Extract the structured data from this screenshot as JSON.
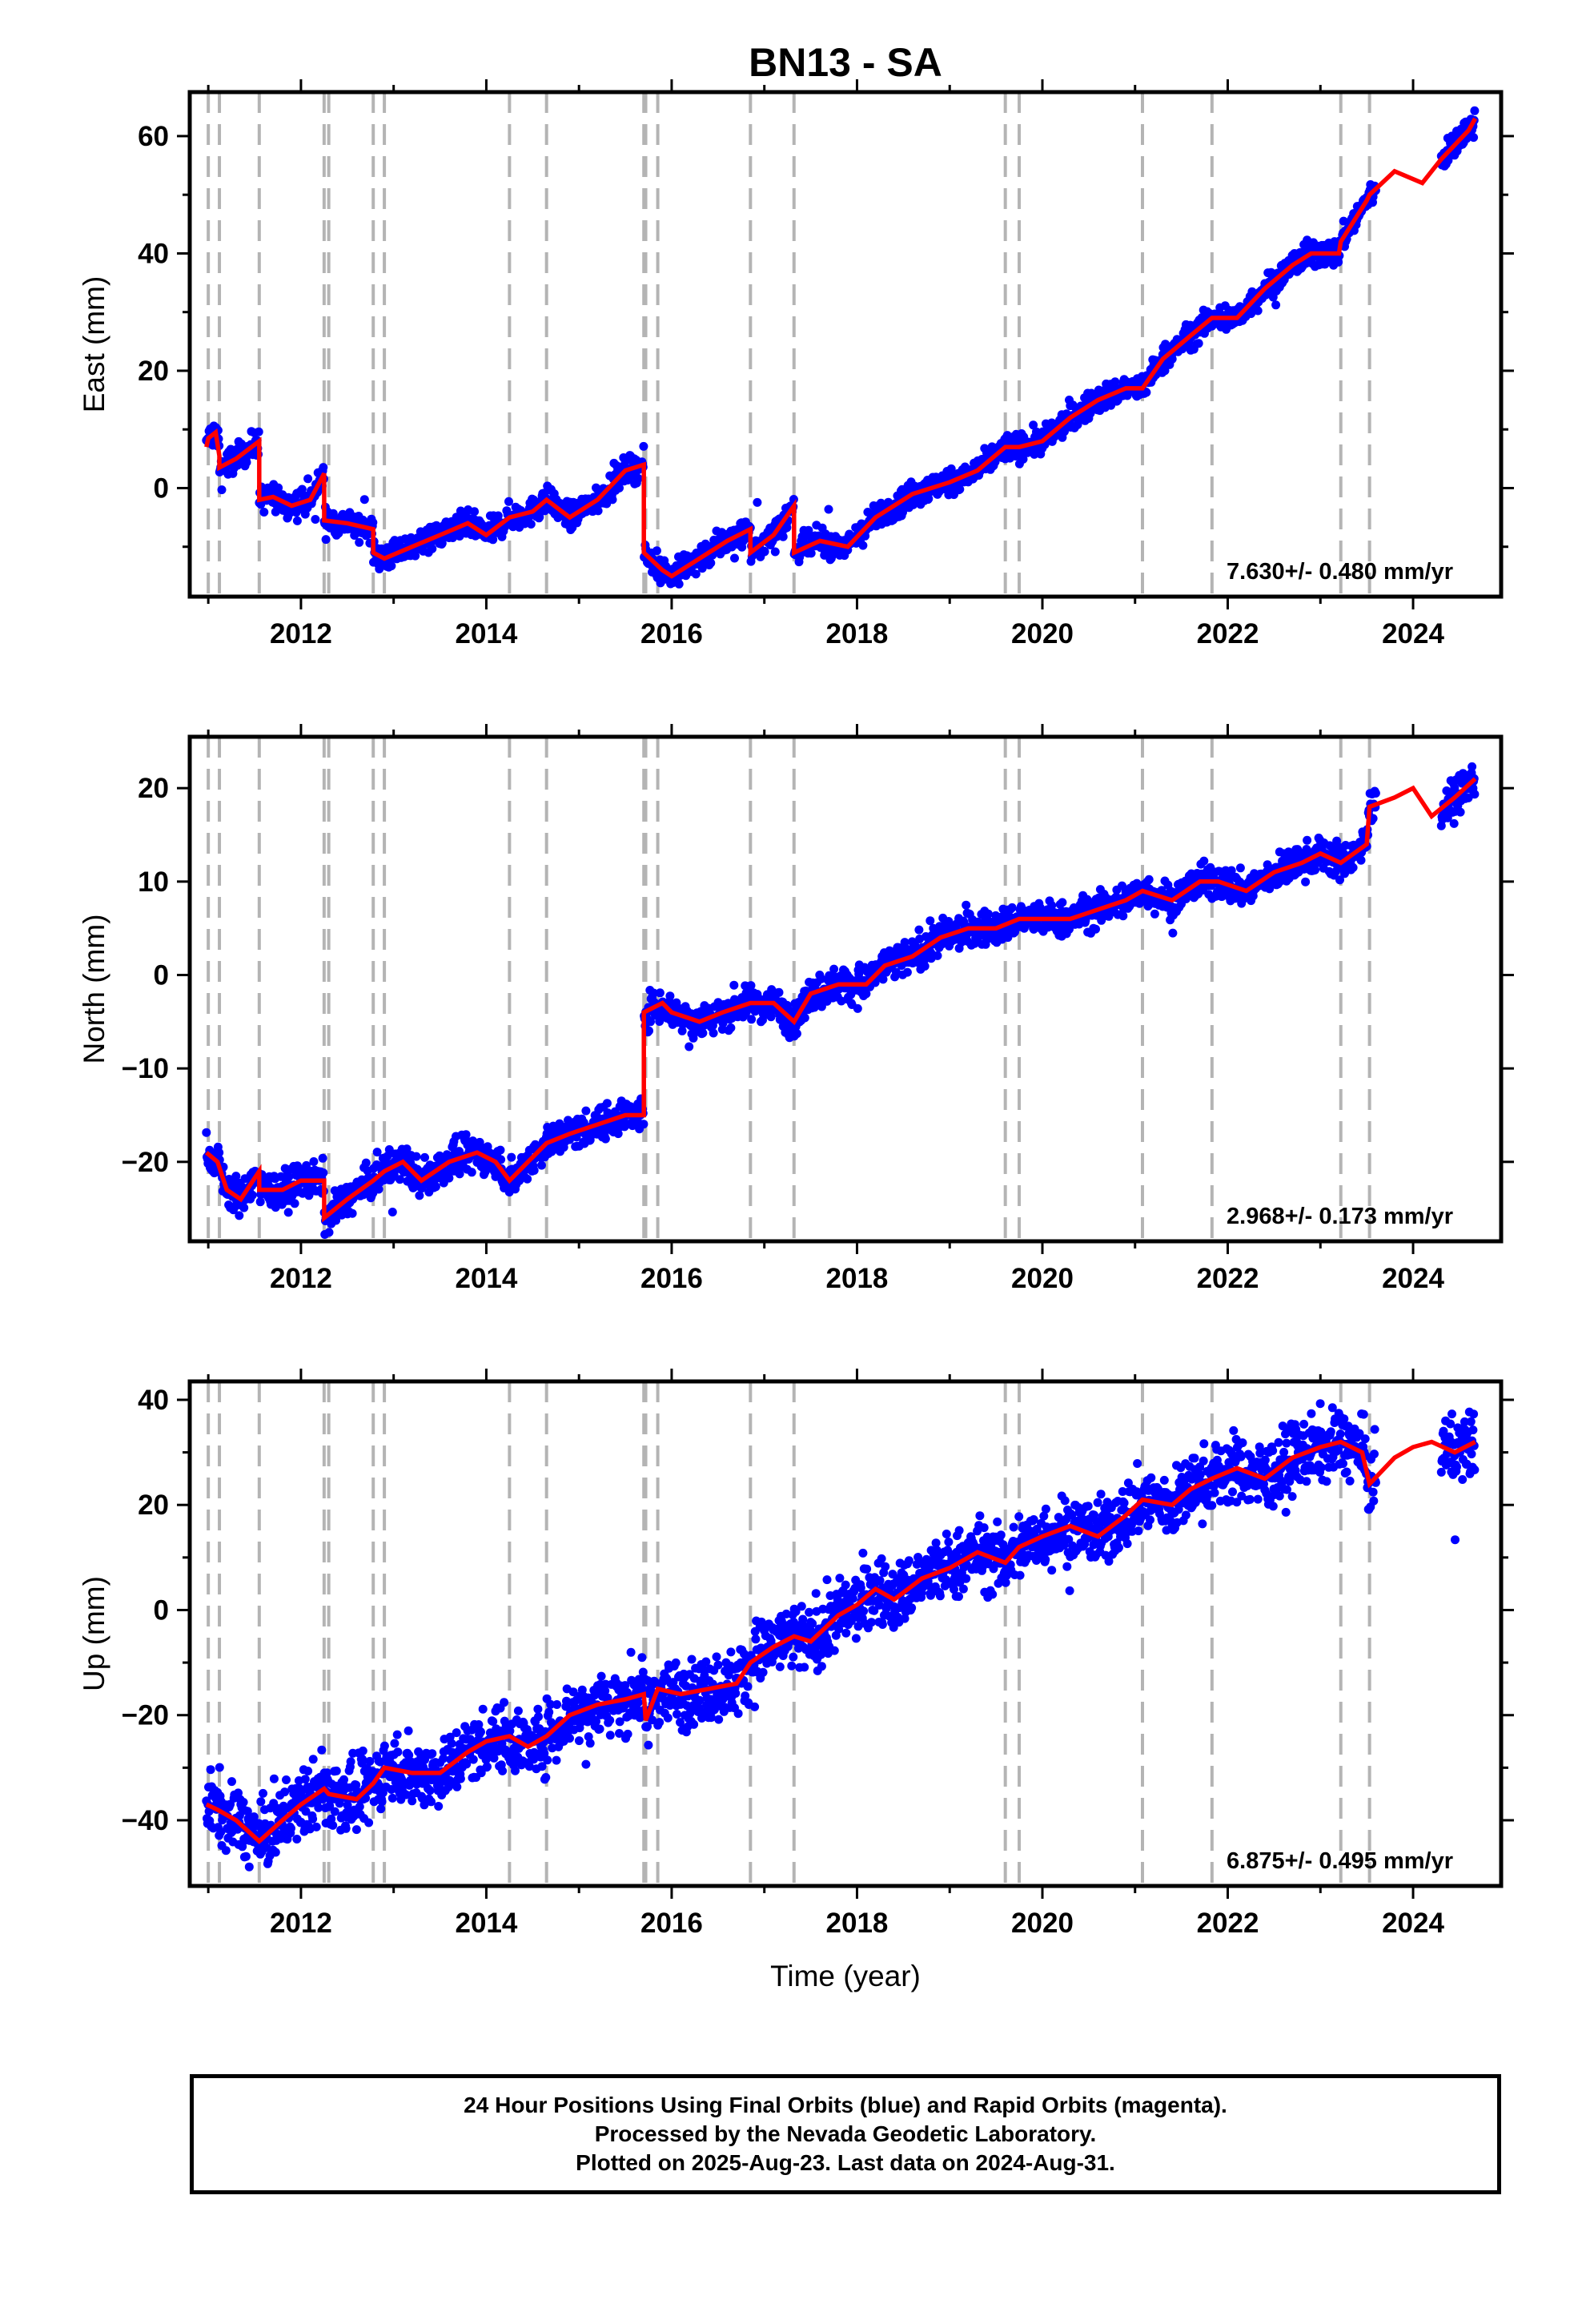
{
  "chart_data": {
    "title": "BN13 - SA",
    "xlabel": "Time (year)",
    "xlim": [
      2010.8,
      2024.95
    ],
    "x_ticks": [
      2012,
      2014,
      2016,
      2018,
      2020,
      2022,
      2024
    ],
    "equipment_change_epochs": [
      2011.0,
      2011.12,
      2011.55,
      2012.25,
      2012.3,
      2012.78,
      2012.9,
      2014.25,
      2014.65,
      2015.7,
      2015.72,
      2015.85,
      2016.85,
      2017.32,
      2019.6,
      2019.75,
      2021.08,
      2021.83,
      2023.22,
      2023.53
    ],
    "colors": {
      "final_orbits": "#0000ff",
      "model_fit": "#ff0000",
      "event_lines": "#b4b4b4",
      "axes": "#000000"
    },
    "panels": [
      {
        "ylabel": "East (mm)",
        "ylim": [
          -18.5,
          67.5
        ],
        "y_ticks": [
          -10,
          0,
          10,
          20,
          30,
          40,
          50,
          60
        ],
        "y_tick_labels": [
          "",
          "0",
          "",
          "20",
          "",
          "40",
          "",
          "60"
        ],
        "rate_label": "7.630+/- 0.480 mm/yr",
        "data_scatter": 1.6,
        "model": [
          [
            2010.98,
            7
          ],
          [
            2011.0,
            8.5
          ],
          [
            2011.08,
            9.5
          ],
          [
            2011.12,
            5.5
          ],
          [
            2011.12,
            3.5
          ],
          [
            2011.3,
            5
          ],
          [
            2011.55,
            8
          ],
          [
            2011.55,
            -2
          ],
          [
            2011.7,
            -1.5
          ],
          [
            2011.9,
            -3
          ],
          [
            2012.1,
            -2
          ],
          [
            2012.25,
            2.5
          ],
          [
            2012.25,
            -5.5
          ],
          [
            2012.5,
            -6
          ],
          [
            2012.78,
            -7
          ],
          [
            2012.78,
            -11
          ],
          [
            2012.9,
            -12
          ],
          [
            2013.2,
            -10
          ],
          [
            2013.5,
            -8
          ],
          [
            2013.8,
            -6
          ],
          [
            2014.0,
            -8
          ],
          [
            2014.25,
            -5
          ],
          [
            2014.5,
            -4
          ],
          [
            2014.65,
            -2
          ],
          [
            2014.9,
            -5
          ],
          [
            2015.2,
            -2
          ],
          [
            2015.5,
            3
          ],
          [
            2015.7,
            4
          ],
          [
            2015.7,
            -11
          ],
          [
            2015.9,
            -14
          ],
          [
            2016.0,
            -15
          ],
          [
            2016.3,
            -12
          ],
          [
            2016.6,
            -9
          ],
          [
            2016.85,
            -7
          ],
          [
            2016.85,
            -11
          ],
          [
            2017.1,
            -8
          ],
          [
            2017.32,
            -3
          ],
          [
            2017.32,
            -11
          ],
          [
            2017.6,
            -9
          ],
          [
            2017.9,
            -10
          ],
          [
            2018.2,
            -5
          ],
          [
            2018.6,
            -1
          ],
          [
            2019.0,
            1
          ],
          [
            2019.3,
            3
          ],
          [
            2019.6,
            7
          ],
          [
            2019.75,
            7
          ],
          [
            2020.0,
            8
          ],
          [
            2020.3,
            12
          ],
          [
            2020.6,
            15
          ],
          [
            2020.9,
            17
          ],
          [
            2021.08,
            17
          ],
          [
            2021.3,
            22
          ],
          [
            2021.6,
            26
          ],
          [
            2021.83,
            29
          ],
          [
            2022.1,
            29
          ],
          [
            2022.4,
            34
          ],
          [
            2022.7,
            38
          ],
          [
            2022.9,
            40
          ],
          [
            2023.2,
            40
          ],
          [
            2023.22,
            42
          ],
          [
            2023.5,
            49
          ],
          [
            2023.53,
            50
          ],
          [
            2023.8,
            54
          ],
          [
            2024.1,
            52
          ],
          [
            2024.3,
            56
          ],
          [
            2024.6,
            61
          ],
          [
            2024.67,
            63
          ]
        ]
      },
      {
        "ylabel": "North (mm)",
        "ylim": [
          -28.5,
          25.5
        ],
        "y_ticks": [
          -20,
          -10,
          0,
          10,
          20
        ],
        "y_tick_labels": [
          "−20",
          "−10",
          "0",
          "10",
          "20"
        ],
        "rate_label": "2.968+/- 0.173 mm/yr",
        "data_scatter": 1.3,
        "model": [
          [
            2010.98,
            -19
          ],
          [
            2011.1,
            -20
          ],
          [
            2011.2,
            -23
          ],
          [
            2011.35,
            -24
          ],
          [
            2011.55,
            -21
          ],
          [
            2011.55,
            -23
          ],
          [
            2011.8,
            -23
          ],
          [
            2012.0,
            -22
          ],
          [
            2012.25,
            -22
          ],
          [
            2012.25,
            -26
          ],
          [
            2012.5,
            -24
          ],
          [
            2012.78,
            -22
          ],
          [
            2012.9,
            -21
          ],
          [
            2013.1,
            -20
          ],
          [
            2013.3,
            -22
          ],
          [
            2013.6,
            -20
          ],
          [
            2013.9,
            -19
          ],
          [
            2014.1,
            -20
          ],
          [
            2014.25,
            -22
          ],
          [
            2014.45,
            -20
          ],
          [
            2014.65,
            -18
          ],
          [
            2014.9,
            -17
          ],
          [
            2015.2,
            -16
          ],
          [
            2015.5,
            -15
          ],
          [
            2015.7,
            -15
          ],
          [
            2015.7,
            -4
          ],
          [
            2015.9,
            -3
          ],
          [
            2016.0,
            -4
          ],
          [
            2016.3,
            -5
          ],
          [
            2016.55,
            -4
          ],
          [
            2016.85,
            -3
          ],
          [
            2017.1,
            -3
          ],
          [
            2017.32,
            -5
          ],
          [
            2017.5,
            -2
          ],
          [
            2017.8,
            -1
          ],
          [
            2018.1,
            -1
          ],
          [
            2018.3,
            1
          ],
          [
            2018.6,
            2
          ],
          [
            2018.9,
            4
          ],
          [
            2019.2,
            5
          ],
          [
            2019.5,
            5
          ],
          [
            2019.75,
            6
          ],
          [
            2020.0,
            6
          ],
          [
            2020.3,
            6
          ],
          [
            2020.6,
            7
          ],
          [
            2020.9,
            8
          ],
          [
            2021.08,
            9
          ],
          [
            2021.4,
            8
          ],
          [
            2021.7,
            10
          ],
          [
            2021.9,
            10
          ],
          [
            2022.2,
            9
          ],
          [
            2022.5,
            11
          ],
          [
            2022.8,
            12
          ],
          [
            2023.0,
            13
          ],
          [
            2023.22,
            12
          ],
          [
            2023.5,
            14
          ],
          [
            2023.53,
            18
          ],
          [
            2023.8,
            19
          ],
          [
            2024.0,
            20
          ],
          [
            2024.2,
            17
          ],
          [
            2024.45,
            19
          ],
          [
            2024.67,
            21
          ]
        ]
      },
      {
        "ylabel": "Up (mm)",
        "ylim": [
          -52.5,
          43.5
        ],
        "y_ticks": [
          -40,
          -30,
          -20,
          -10,
          0,
          10,
          20,
          30,
          40
        ],
        "y_tick_labels": [
          "−40",
          "",
          "−20",
          "",
          "0",
          "",
          "20",
          "",
          "40"
        ],
        "rate_label": "6.875+/- 0.495 mm/yr",
        "data_scatter": 4.5,
        "model": [
          [
            2010.98,
            -37
          ],
          [
            2011.1,
            -38
          ],
          [
            2011.3,
            -40
          ],
          [
            2011.55,
            -44
          ],
          [
            2011.8,
            -40
          ],
          [
            2012.0,
            -37
          ],
          [
            2012.25,
            -34
          ],
          [
            2012.3,
            -35
          ],
          [
            2012.6,
            -36
          ],
          [
            2012.78,
            -33
          ],
          [
            2012.9,
            -30
          ],
          [
            2013.2,
            -31
          ],
          [
            2013.5,
            -31
          ],
          [
            2013.8,
            -27
          ],
          [
            2014.0,
            -25
          ],
          [
            2014.25,
            -24
          ],
          [
            2014.45,
            -26
          ],
          [
            2014.65,
            -24
          ],
          [
            2014.9,
            -20
          ],
          [
            2015.2,
            -18
          ],
          [
            2015.5,
            -17
          ],
          [
            2015.7,
            -16
          ],
          [
            2015.72,
            -21
          ],
          [
            2015.85,
            -15
          ],
          [
            2016.1,
            -16
          ],
          [
            2016.4,
            -15
          ],
          [
            2016.7,
            -14
          ],
          [
            2016.85,
            -10
          ],
          [
            2017.1,
            -7
          ],
          [
            2017.32,
            -5
          ],
          [
            2017.5,
            -6
          ],
          [
            2017.8,
            -1
          ],
          [
            2018.0,
            1
          ],
          [
            2018.2,
            4
          ],
          [
            2018.4,
            2
          ],
          [
            2018.7,
            6
          ],
          [
            2019.0,
            8
          ],
          [
            2019.3,
            11
          ],
          [
            2019.6,
            9
          ],
          [
            2019.75,
            12
          ],
          [
            2020.0,
            14
          ],
          [
            2020.3,
            16
          ],
          [
            2020.6,
            14
          ],
          [
            2020.9,
            18
          ],
          [
            2021.08,
            21
          ],
          [
            2021.4,
            20
          ],
          [
            2021.6,
            23
          ],
          [
            2021.83,
            25
          ],
          [
            2022.1,
            27
          ],
          [
            2022.4,
            25
          ],
          [
            2022.7,
            29
          ],
          [
            2023.0,
            31
          ],
          [
            2023.22,
            32
          ],
          [
            2023.45,
            30
          ],
          [
            2023.53,
            24
          ],
          [
            2023.8,
            29
          ],
          [
            2024.0,
            31
          ],
          [
            2024.2,
            32
          ],
          [
            2024.45,
            30
          ],
          [
            2024.67,
            32
          ]
        ]
      }
    ]
  },
  "footer": {
    "line1": "24 Hour Positions Using Final Orbits (blue) and Rapid Orbits (magenta).",
    "line2": "Processed by the Nevada Geodetic Laboratory.",
    "line3": "Plotted on 2025-Aug-23. Last data on 2024-Aug-31."
  }
}
